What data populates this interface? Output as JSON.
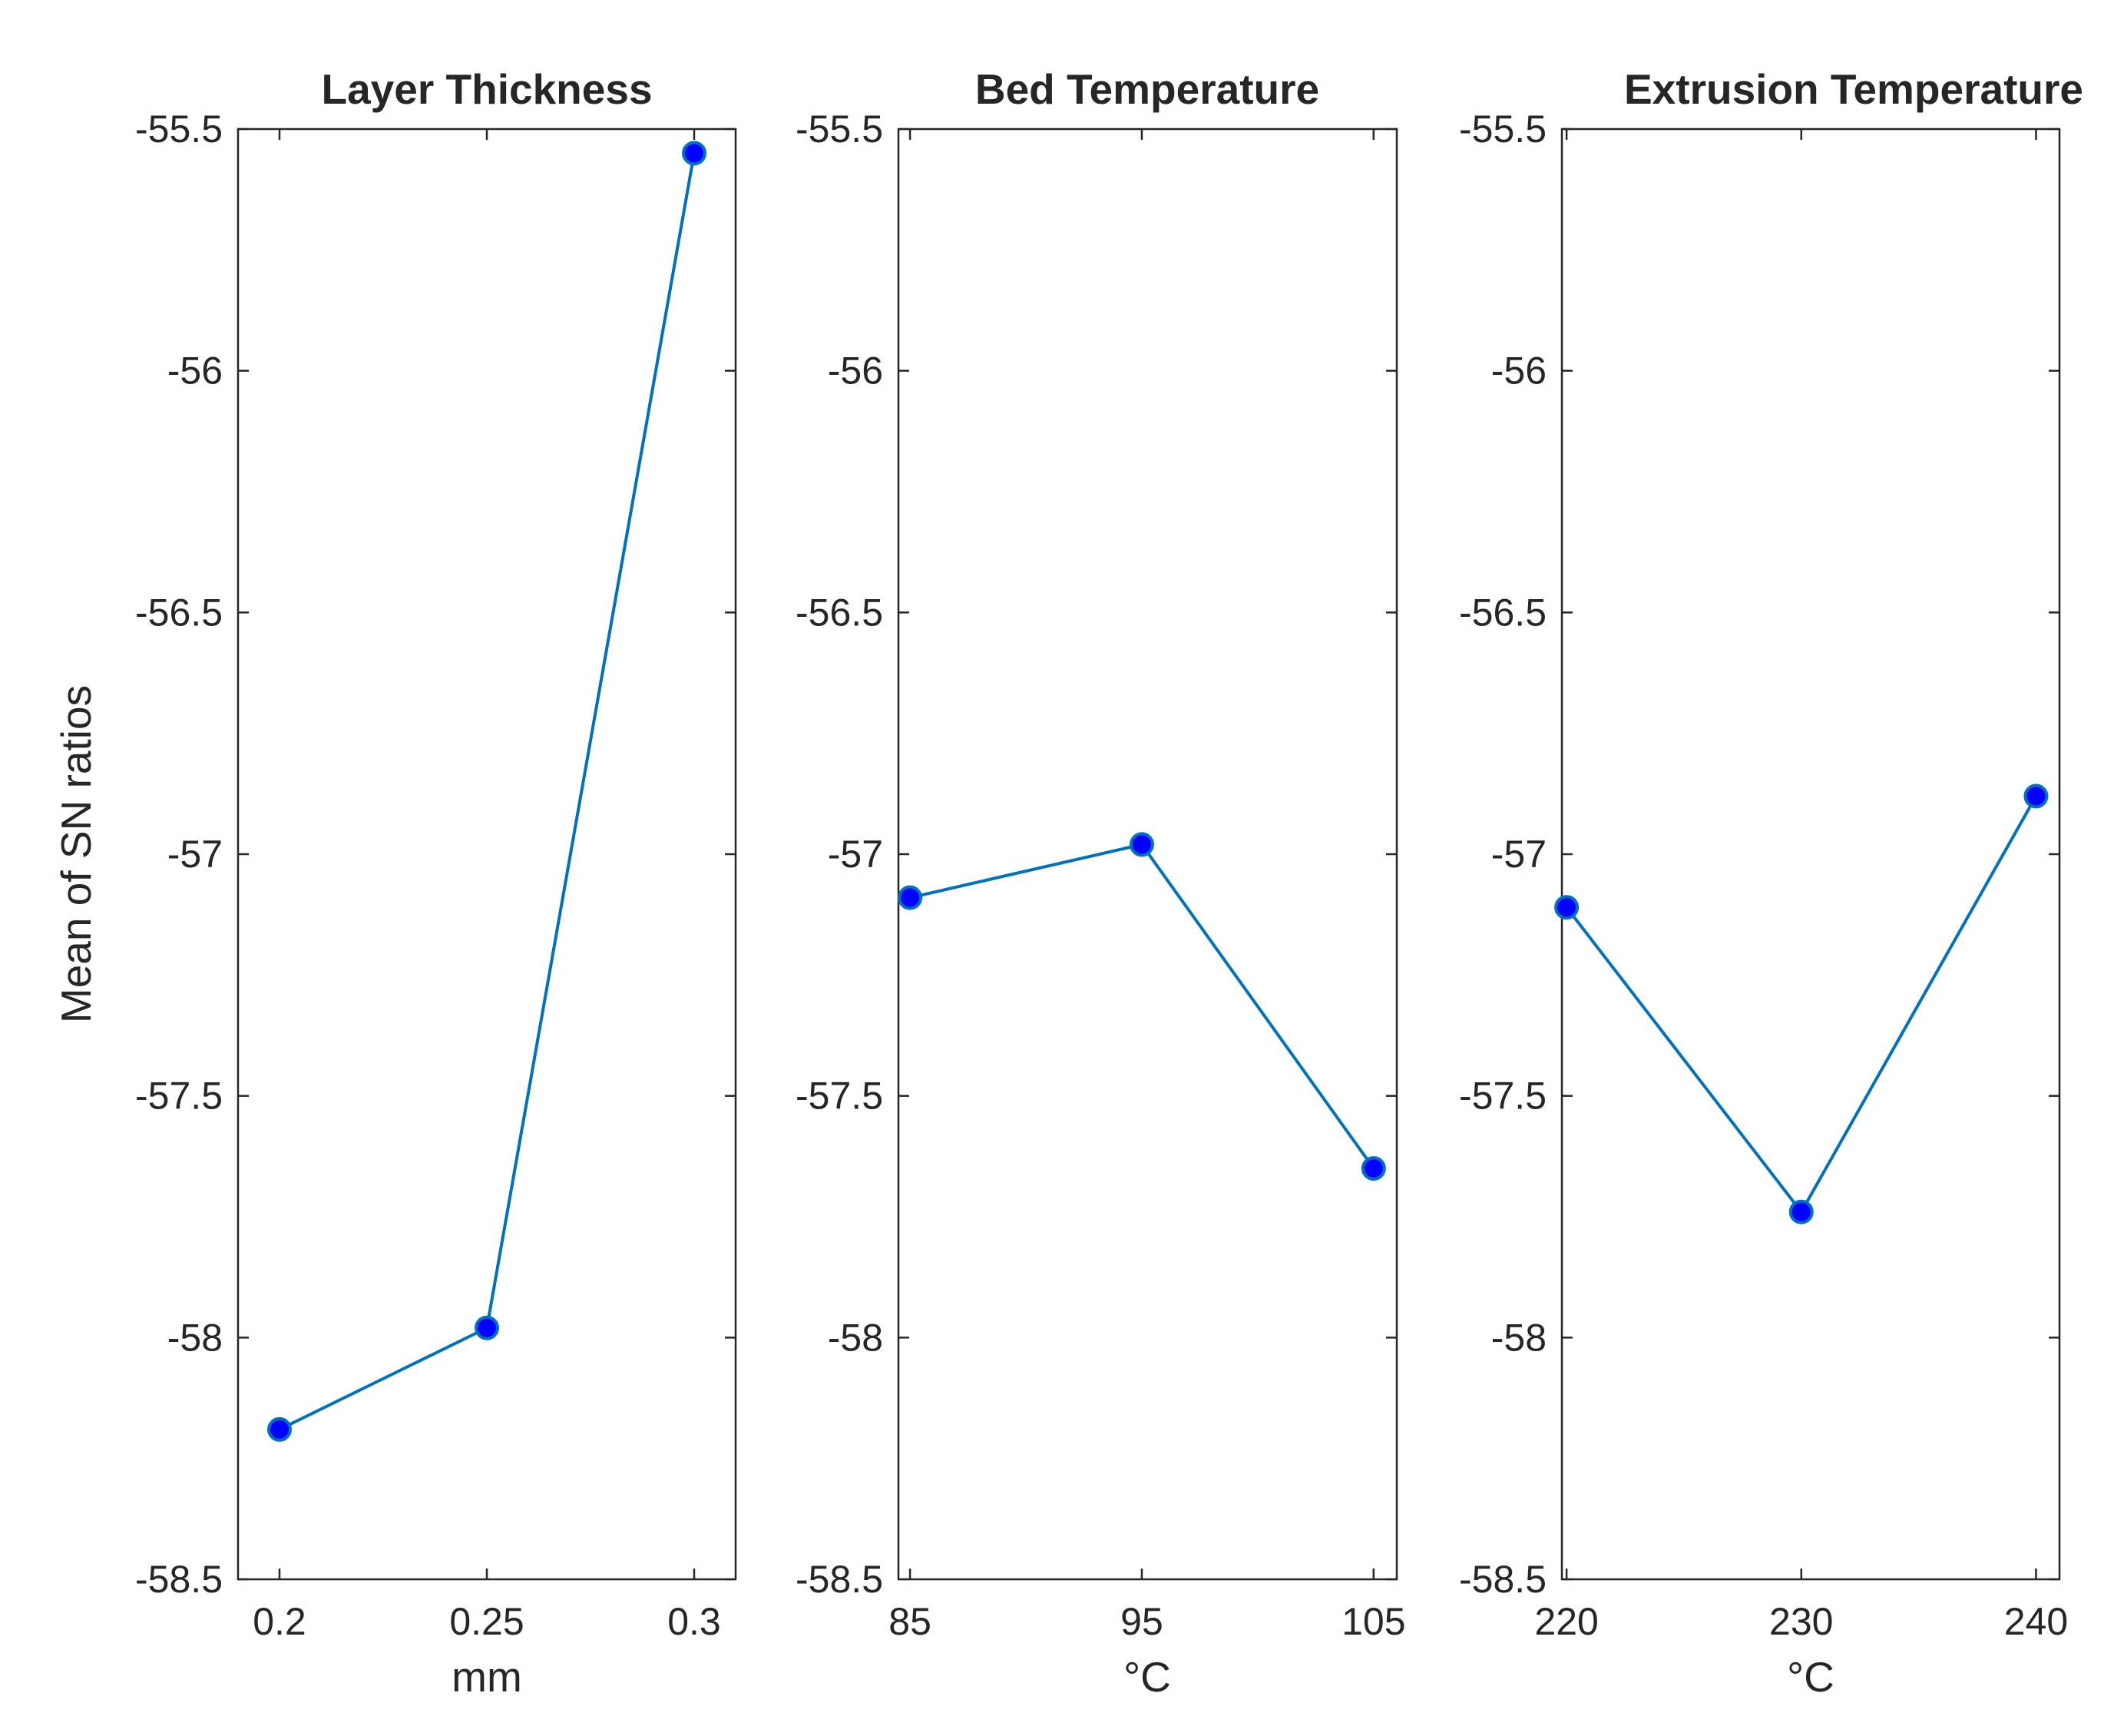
{
  "chart_data": [
    {
      "type": "line",
      "title": "Layer Thickness",
      "xlabel": "mm",
      "ylabel": "Mean of SN ratios",
      "x": [
        0.2,
        0.25,
        0.3
      ],
      "x_tick_labels": [
        "0.2",
        "0.25",
        "0.3"
      ],
      "values": [
        -58.19,
        -57.98,
        -55.55
      ],
      "xlim": [
        0.19,
        0.31
      ],
      "ylim": [
        -58.5,
        -55.5
      ],
      "y_tick_labels": [
        "-55.5",
        "-56",
        "-56.5",
        "-57",
        "-57.5",
        "-58",
        "-58.5"
      ],
      "line_color": "#0072BD",
      "marker_color": "#0000FF",
      "grid": false
    },
    {
      "type": "line",
      "title": "Bed Temperature",
      "xlabel": "°C",
      "ylabel": "",
      "x": [
        85,
        95,
        105
      ],
      "x_tick_labels": [
        "85",
        "95",
        "105"
      ],
      "values": [
        -57.09,
        -56.98,
        -57.65
      ],
      "xlim": [
        84.5,
        106
      ],
      "ylim": [
        -58.5,
        -55.5
      ],
      "y_tick_labels": [
        "-55.5",
        "-56",
        "-56.5",
        "-57",
        "-57.5",
        "-58",
        "-58.5"
      ],
      "line_color": "#0072BD",
      "marker_color": "#0000FF",
      "grid": false
    },
    {
      "type": "line",
      "title": "Extrusion Temperature",
      "xlabel": "°C",
      "ylabel": "",
      "x": [
        220,
        230,
        240
      ],
      "x_tick_labels": [
        "220",
        "230",
        "240"
      ],
      "values": [
        -57.11,
        -57.74,
        -56.88
      ],
      "xlim": [
        219.8,
        241
      ],
      "ylim": [
        -58.5,
        -55.5
      ],
      "y_tick_labels": [
        "-55.5",
        "-56",
        "-56.5",
        "-57",
        "-57.5",
        "-58",
        "-58.5"
      ],
      "line_color": "#0072BD",
      "marker_color": "#0000FF",
      "grid": false
    }
  ]
}
